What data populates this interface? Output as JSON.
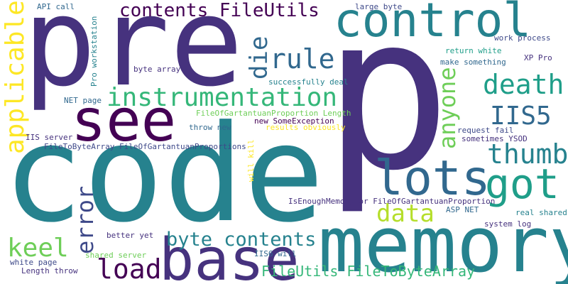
{
  "words": {
    "code": "code",
    "p": "p",
    "pre": "pre",
    "memory": "memory",
    "control": "control",
    "see": "see",
    "base": "base",
    "lots": "lots",
    "got": "got",
    "instrumentation": "instrumentation",
    "applicable": "applicable",
    "contents_fileutils": "contents FileUtils",
    "rule": "rule",
    "die": "die",
    "death": "death",
    "anyone": "anyone",
    "iis5": "IIS5",
    "thumb": "thumb",
    "data": "data",
    "error": "error",
    "keel": "keel",
    "load": "load",
    "byte_contents": "byte contents",
    "fileutils_filetobytearray": "FileUtils FileToByteArray",
    "api_call": "API call",
    "large_byte": "large byte",
    "work_process": "work process",
    "xp_pro": "XP Pro",
    "return_white": "return white",
    "make_something": "make something",
    "pro_workstation": "Pro workstation",
    "byte_array": "byte array",
    "successfully_deal": "successfully deal",
    "net_page": "NET page",
    "fileofg_length": "FileOfGartantuanProportion Length",
    "new_someexception": "new SomeException",
    "throw_new": "throw new",
    "results_obviously": "results obviously",
    "request_fail": "request fail",
    "iis_server": "IIS server",
    "filetobytearray_fileofg": "FileToByteArray FileOfGartantuanProportions",
    "sometimes_ysod": "sometimes YSOD",
    "will_kill": "will kill",
    "isenough": "IsEnoughMemoryFor FileOfGartantuanProportion",
    "asp_net": "ASP NET",
    "real_shared": "real shared",
    "system_log": "system log",
    "better_yet": "better yet",
    "shared_server": "shared server",
    "iis6_will": "IIS6 will",
    "white_page": "white page",
    "length_throw": "Length throw"
  },
  "colors": {
    "dark_purple": "#440154",
    "purple": "#46327e",
    "indigo": "#3e4989",
    "blue": "#31688e",
    "teal": "#26828e",
    "teal_green": "#1f9e89",
    "green": "#35b779",
    "light_green": "#6ece58",
    "yellow_green": "#b5de2b",
    "yellow": "#fde725"
  }
}
